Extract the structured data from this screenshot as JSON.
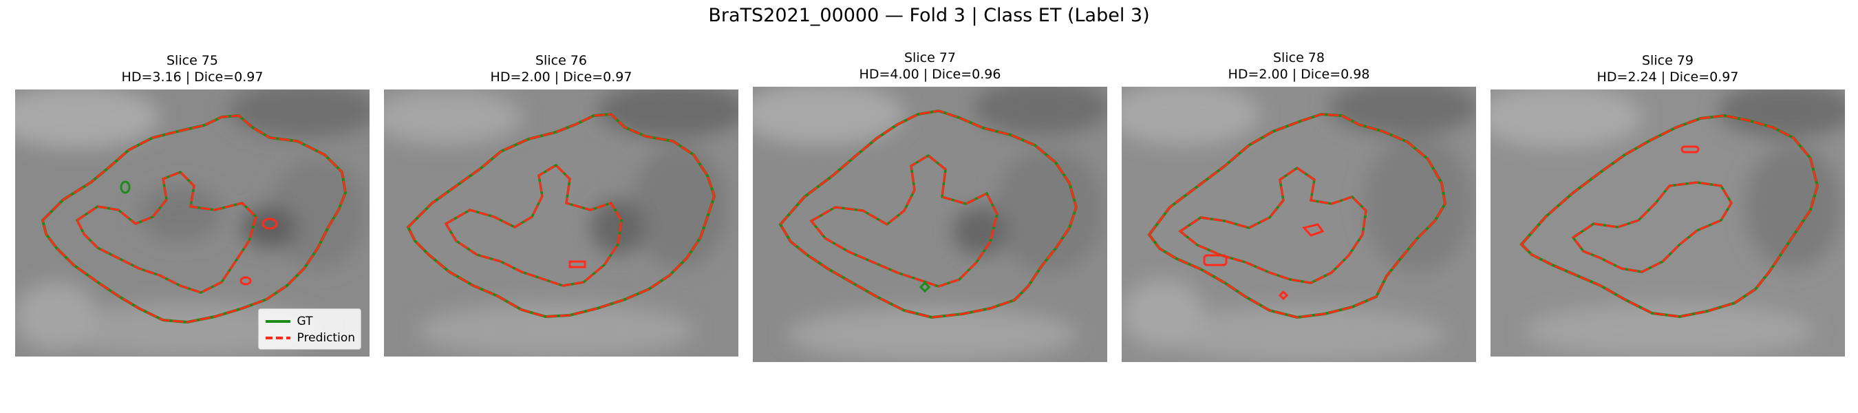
{
  "figure": {
    "title": "BraTS2021_00000 — Fold 3 | Class ET (Label 3)"
  },
  "colors": {
    "gt": "#1a8c1a",
    "prediction": "#ff2a1a"
  },
  "legend": {
    "gt_label": "GT",
    "prediction_label": "Prediction"
  },
  "panels": [
    {
      "slice": "Slice 75",
      "metrics": "HD=3.16 | Dice=0.97",
      "hd": 3.16,
      "dice": 0.97
    },
    {
      "slice": "Slice 76",
      "metrics": "HD=2.00 | Dice=0.97",
      "hd": 2.0,
      "dice": 0.97
    },
    {
      "slice": "Slice 77",
      "metrics": "HD=4.00 | Dice=0.96",
      "hd": 4.0,
      "dice": 0.96
    },
    {
      "slice": "Slice 78",
      "metrics": "HD=2.00 | Dice=0.98",
      "hd": 2.0,
      "dice": 0.98
    },
    {
      "slice": "Slice 79",
      "metrics": "HD=2.24 | Dice=0.97",
      "hd": 2.24,
      "dice": 0.97
    }
  ]
}
